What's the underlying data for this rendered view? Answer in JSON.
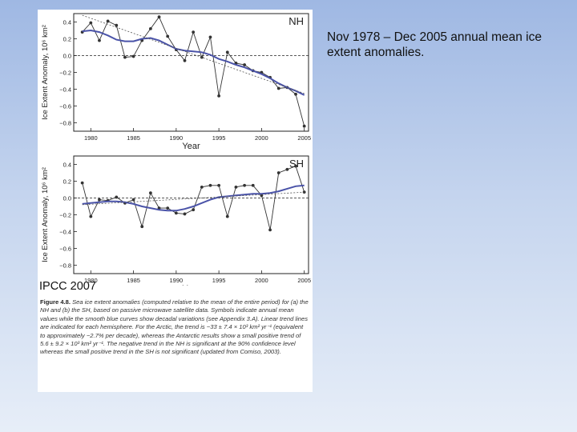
{
  "slide": {
    "caption": "Nov 1978 – Dec 2005 annual mean ice extent anomalies.",
    "source_label": "IPCC 2007"
  },
  "figure_caption": {
    "label": "Figure 4.8.",
    "text": "Sea ice extent anomalies (computed relative to the mean of the entire period) for (a) the NH and (b) the SH, based on passive microwave satellite data. Symbols indicate annual mean values while the smooth blue curves show decadal variations (see Appendix 3.A). Linear trend lines are indicated for each hemisphere. For the Arctic, the trend is −33 ± 7.4 × 10³ km² yr⁻¹ (equivalent to approximately −2.7% per decade), whereas the Antarctic results show a small positive trend of 5.6 ± 9.2 × 10³ km² yr⁻¹. The negative trend in the NH is significant at the 90% confidence level whereas the small positive trend in the SH is not significant (updated from Comiso, 2003)."
  },
  "colors": {
    "smooth": "#4a53a8",
    "annual": "#333333",
    "trend": "#555555"
  },
  "chart_data": [
    {
      "type": "line",
      "panel": "NH",
      "xlabel": "Year",
      "ylabel": "Ice Extent Anomaly, 10⁶ km²",
      "xlim": [
        1978,
        2005.5
      ],
      "ylim": [
        -0.9,
        0.5
      ],
      "xticks": [
        1980,
        1985,
        1990,
        1995,
        2000,
        2005
      ],
      "yticks": [
        0.4,
        0.2,
        0.0,
        -0.2,
        -0.4,
        -0.6,
        -0.8
      ],
      "zero_line": true,
      "series": [
        {
          "role": "annual",
          "x": [
            1979,
            1980,
            1981,
            1982,
            1983,
            1984,
            1985,
            1986,
            1987,
            1988,
            1989,
            1990,
            1991,
            1992,
            1993,
            1994,
            1995,
            1996,
            1997,
            1998,
            1999,
            2000,
            2001,
            2002,
            2003,
            2004,
            2005
          ],
          "y": [
            0.28,
            0.39,
            0.18,
            0.41,
            0.36,
            -0.02,
            -0.01,
            0.18,
            0.32,
            0.46,
            0.23,
            0.07,
            -0.06,
            0.28,
            -0.02,
            0.22,
            -0.48,
            0.04,
            -0.09,
            -0.11,
            -0.18,
            -0.2,
            -0.26,
            -0.39,
            -0.38,
            -0.46,
            -0.84
          ]
        },
        {
          "role": "smooth",
          "x": [
            1979,
            1980,
            1981,
            1982,
            1983,
            1984,
            1985,
            1986,
            1987,
            1988,
            1989,
            1990,
            1991,
            1992,
            1993,
            1994,
            1995,
            1996,
            1997,
            1998,
            1999,
            2000,
            2001,
            2002,
            2003,
            2004,
            2005
          ],
          "y": [
            0.29,
            0.3,
            0.28,
            0.24,
            0.19,
            0.17,
            0.17,
            0.2,
            0.21,
            0.18,
            0.13,
            0.08,
            0.06,
            0.05,
            0.04,
            0.01,
            -0.04,
            -0.07,
            -0.11,
            -0.14,
            -0.18,
            -0.22,
            -0.27,
            -0.33,
            -0.38,
            -0.42,
            -0.47
          ]
        },
        {
          "role": "trend",
          "x": [
            1979,
            2005
          ],
          "y": [
            0.48,
            -0.45
          ]
        }
      ]
    },
    {
      "type": "line",
      "panel": "SH",
      "xlabel": "Year",
      "ylabel": "Ice Extent Anomaly, 10⁶ km²",
      "xlim": [
        1978,
        2005.5
      ],
      "ylim": [
        -0.9,
        0.5
      ],
      "xticks": [
        1980,
        1985,
        1990,
        1995,
        2000,
        2005
      ],
      "yticks": [
        0.4,
        0.2,
        0.0,
        -0.2,
        -0.4,
        -0.6,
        -0.8
      ],
      "zero_line": true,
      "series": [
        {
          "role": "annual",
          "x": [
            1979,
            1980,
            1981,
            1982,
            1983,
            1984,
            1985,
            1986,
            1987,
            1988,
            1989,
            1990,
            1991,
            1992,
            1993,
            1994,
            1995,
            1996,
            1997,
            1998,
            1999,
            2000,
            2001,
            2002,
            2003,
            2004,
            2005
          ],
          "y": [
            0.18,
            -0.22,
            -0.02,
            -0.03,
            0.01,
            -0.06,
            -0.02,
            -0.34,
            0.06,
            -0.12,
            -0.12,
            -0.18,
            -0.19,
            -0.14,
            0.13,
            0.15,
            0.15,
            -0.22,
            0.13,
            0.15,
            0.15,
            0.03,
            -0.38,
            0.3,
            0.34,
            0.38,
            0.07
          ]
        },
        {
          "role": "smooth",
          "x": [
            1979,
            1980,
            1981,
            1982,
            1983,
            1984,
            1985,
            1986,
            1987,
            1988,
            1989,
            1990,
            1991,
            1992,
            1993,
            1994,
            1995,
            1996,
            1997,
            1998,
            1999,
            2000,
            2001,
            2002,
            2003,
            2004,
            2005
          ],
          "y": [
            -0.07,
            -0.06,
            -0.05,
            -0.04,
            -0.04,
            -0.05,
            -0.07,
            -0.1,
            -0.12,
            -0.14,
            -0.15,
            -0.15,
            -0.13,
            -0.1,
            -0.06,
            -0.02,
            0.01,
            0.02,
            0.03,
            0.04,
            0.05,
            0.05,
            0.06,
            0.08,
            0.11,
            0.14,
            0.15
          ]
        },
        {
          "role": "trend",
          "x": [
            1979,
            2005
          ],
          "y": [
            -0.08,
            0.07
          ]
        }
      ]
    }
  ]
}
